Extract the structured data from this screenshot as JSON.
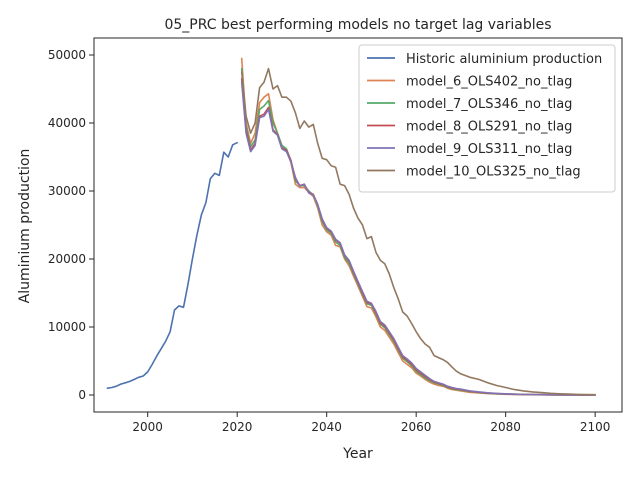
{
  "chart_data": {
    "type": "line",
    "title": "05_PRC best performing models no target lag variables",
    "xlabel": "Year",
    "ylabel": "Aluminium production",
    "xlim": [
      1988,
      2106
    ],
    "ylim": [
      -2500,
      52500
    ],
    "xticks": [
      2000,
      2020,
      2040,
      2060,
      2080,
      2100
    ],
    "yticks": [
      0,
      10000,
      20000,
      30000,
      40000,
      50000
    ],
    "grid": false,
    "legend_position": "top-right",
    "series": [
      {
        "name": "Historic aluminium production",
        "color": "#4c72b0",
        "x": [
          1991,
          1992,
          1993,
          1994,
          1995,
          1996,
          1997,
          1998,
          1999,
          2000,
          2001,
          2002,
          2003,
          2004,
          2005,
          2006,
          2007,
          2008,
          2009,
          2010,
          2011,
          2012,
          2013,
          2014,
          2015,
          2016,
          2017,
          2018,
          2019,
          2020
        ],
        "y": [
          1000,
          1100,
          1300,
          1600,
          1800,
          2000,
          2300,
          2600,
          2800,
          3400,
          4500,
          5700,
          6800,
          7900,
          9300,
          12500,
          13100,
          12900,
          16300,
          20000,
          23500,
          26500,
          28300,
          31800,
          32600,
          32300,
          35700,
          35000,
          36800,
          37100
        ]
      },
      {
        "name": "model_6_OLS402_no_tlag",
        "color": "#dd8452",
        "x": [
          2021,
          2022,
          2023,
          2024,
          2025,
          2026,
          2027,
          2028,
          2029,
          2030,
          2031,
          2032,
          2033,
          2034,
          2035,
          2036,
          2037,
          2038,
          2039,
          2040,
          2041,
          2042,
          2043,
          2044,
          2045,
          2046,
          2047,
          2048,
          2049,
          2050,
          2051,
          2052,
          2053,
          2054,
          2055,
          2056,
          2057,
          2058,
          2059,
          2060,
          2061,
          2062,
          2063,
          2064,
          2065,
          2066,
          2067,
          2068,
          2069,
          2070,
          2072,
          2074,
          2076,
          2078,
          2080,
          2082,
          2084,
          2086,
          2088,
          2090,
          2092,
          2094,
          2096,
          2098,
          2100
        ],
        "y": [
          49500,
          40000,
          37000,
          38500,
          43000,
          43800,
          44300,
          40500,
          38500,
          36500,
          36000,
          34200,
          31000,
          30500,
          30500,
          29800,
          29200,
          27500,
          25000,
          24000,
          23500,
          22000,
          21800,
          20000,
          19000,
          17500,
          16000,
          14500,
          13000,
          12800,
          11500,
          10000,
          9500,
          8500,
          7500,
          6200,
          5000,
          4500,
          4000,
          3200,
          2800,
          2300,
          1900,
          1600,
          1400,
          1300,
          1000,
          800,
          700,
          600,
          400,
          300,
          200,
          150,
          100,
          80,
          60,
          40,
          30,
          20,
          15,
          10,
          8,
          5,
          3
        ]
      },
      {
        "name": "model_7_OLS346_no_tlag",
        "color": "#55a868",
        "x": [
          2021,
          2022,
          2023,
          2024,
          2025,
          2026,
          2027,
          2028,
          2029,
          2030,
          2031,
          2032,
          2033,
          2034,
          2035,
          2036,
          2037,
          2038,
          2039,
          2040,
          2041,
          2042,
          2043,
          2044,
          2045,
          2046,
          2047,
          2048,
          2049,
          2050,
          2051,
          2052,
          2053,
          2054,
          2055,
          2056,
          2057,
          2058,
          2059,
          2060,
          2061,
          2062,
          2063,
          2064,
          2065,
          2066,
          2067,
          2068,
          2069,
          2070,
          2072,
          2074,
          2076,
          2078,
          2080,
          2082,
          2084,
          2086,
          2088,
          2090,
          2092,
          2094,
          2096,
          2098,
          2100
        ],
        "y": [
          48000,
          39500,
          36500,
          37500,
          42000,
          42500,
          43300,
          40000,
          38500,
          36700,
          36200,
          34500,
          31500,
          30800,
          30800,
          30000,
          29400,
          27800,
          25500,
          24300,
          23800,
          22500,
          22000,
          20200,
          19400,
          17800,
          16300,
          14800,
          13400,
          13200,
          11900,
          10400,
          9900,
          8900,
          7900,
          6600,
          5400,
          4900,
          4300,
          3500,
          3000,
          2500,
          2100,
          1800,
          1600,
          1400,
          1100,
          900,
          800,
          700,
          500,
          350,
          250,
          180,
          130,
          100,
          70,
          50,
          40,
          30,
          20,
          15,
          10,
          8,
          5
        ]
      },
      {
        "name": "model_8_OLS291_no_tlag",
        "color": "#c44e52",
        "x": [
          2021,
          2022,
          2023,
          2024,
          2025,
          2026,
          2027,
          2028,
          2029,
          2030,
          2031,
          2032,
          2033,
          2034,
          2035,
          2036,
          2037,
          2038,
          2039,
          2040,
          2041,
          2042,
          2043,
          2044,
          2045,
          2046,
          2047,
          2048,
          2049,
          2050,
          2051,
          2052,
          2053,
          2054,
          2055,
          2056,
          2057,
          2058,
          2059,
          2060,
          2061,
          2062,
          2063,
          2064,
          2065,
          2066,
          2067,
          2068,
          2069,
          2070,
          2072,
          2074,
          2076,
          2078,
          2080,
          2082,
          2084,
          2086,
          2088,
          2090,
          2092,
          2094,
          2096,
          2098,
          2100
        ],
        "y": [
          46500,
          39000,
          36000,
          37000,
          41000,
          41300,
          42300,
          39000,
          38300,
          36300,
          36000,
          34500,
          31800,
          30800,
          31000,
          29800,
          29500,
          28000,
          25800,
          24500,
          24000,
          22800,
          22300,
          20500,
          19700,
          18000,
          16500,
          15000,
          13600,
          13400,
          12100,
          10600,
          10100,
          9100,
          8100,
          6800,
          5600,
          5100,
          4500,
          3700,
          3200,
          2700,
          2300,
          1900,
          1700,
          1500,
          1200,
          1000,
          900,
          800,
          550,
          400,
          280,
          200,
          150,
          110,
          80,
          60,
          45,
          35,
          25,
          18,
          12,
          9,
          6
        ]
      },
      {
        "name": "model_9_OLS311_no_tlag",
        "color": "#8172b3",
        "x": [
          2021,
          2022,
          2023,
          2024,
          2025,
          2026,
          2027,
          2028,
          2029,
          2030,
          2031,
          2032,
          2033,
          2034,
          2035,
          2036,
          2037,
          2038,
          2039,
          2040,
          2041,
          2042,
          2043,
          2044,
          2045,
          2046,
          2047,
          2048,
          2049,
          2050,
          2051,
          2052,
          2053,
          2054,
          2055,
          2056,
          2057,
          2058,
          2059,
          2060,
          2061,
          2062,
          2063,
          2064,
          2065,
          2066,
          2067,
          2068,
          2069,
          2070,
          2072,
          2074,
          2076,
          2078,
          2080,
          2082,
          2084,
          2086,
          2088,
          2090,
          2092,
          2094,
          2096,
          2098,
          2100
        ],
        "y": [
          46000,
          38500,
          35800,
          36700,
          40800,
          41000,
          42000,
          38800,
          38200,
          36200,
          35800,
          34300,
          32000,
          30700,
          31000,
          29700,
          29400,
          28000,
          25900,
          24600,
          24100,
          22900,
          22400,
          20600,
          19800,
          18200,
          16700,
          15200,
          13800,
          13500,
          12300,
          10800,
          10300,
          9300,
          8300,
          7000,
          5800,
          5300,
          4700,
          3900,
          3400,
          2900,
          2400,
          2000,
          1800,
          1600,
          1300,
          1100,
          950,
          850,
          600,
          450,
          320,
          230,
          170,
          130,
          90,
          70,
          50,
          40,
          30,
          20,
          14,
          10,
          7
        ]
      },
      {
        "name": "model_10_OLS325_no_tlag",
        "color": "#937860",
        "x": [
          2021,
          2022,
          2023,
          2024,
          2025,
          2026,
          2027,
          2028,
          2029,
          2030,
          2031,
          2032,
          2033,
          2034,
          2035,
          2036,
          2037,
          2038,
          2039,
          2040,
          2041,
          2042,
          2043,
          2044,
          2045,
          2046,
          2047,
          2048,
          2049,
          2050,
          2051,
          2052,
          2053,
          2054,
          2055,
          2056,
          2057,
          2058,
          2059,
          2060,
          2061,
          2062,
          2063,
          2064,
          2065,
          2066,
          2067,
          2068,
          2069,
          2070,
          2072,
          2074,
          2076,
          2078,
          2080,
          2082,
          2084,
          2086,
          2088,
          2090,
          2092,
          2094,
          2096,
          2098,
          2100
        ],
        "y": [
          47500,
          41000,
          38500,
          40000,
          45200,
          46000,
          48000,
          45000,
          45500,
          43800,
          43800,
          43200,
          41500,
          39200,
          40300,
          39400,
          39800,
          37000,
          34800,
          34600,
          33700,
          33500,
          31000,
          30800,
          29500,
          27500,
          26000,
          25000,
          23000,
          23300,
          21000,
          19800,
          19300,
          17800,
          15800,
          14100,
          12200,
          11600,
          10500,
          9300,
          8300,
          7500,
          7000,
          5800,
          5500,
          5200,
          4800,
          4100,
          3500,
          3100,
          2600,
          2300,
          1800,
          1400,
          1100,
          800,
          600,
          450,
          350,
          250,
          180,
          130,
          90,
          60,
          40
        ]
      }
    ]
  }
}
